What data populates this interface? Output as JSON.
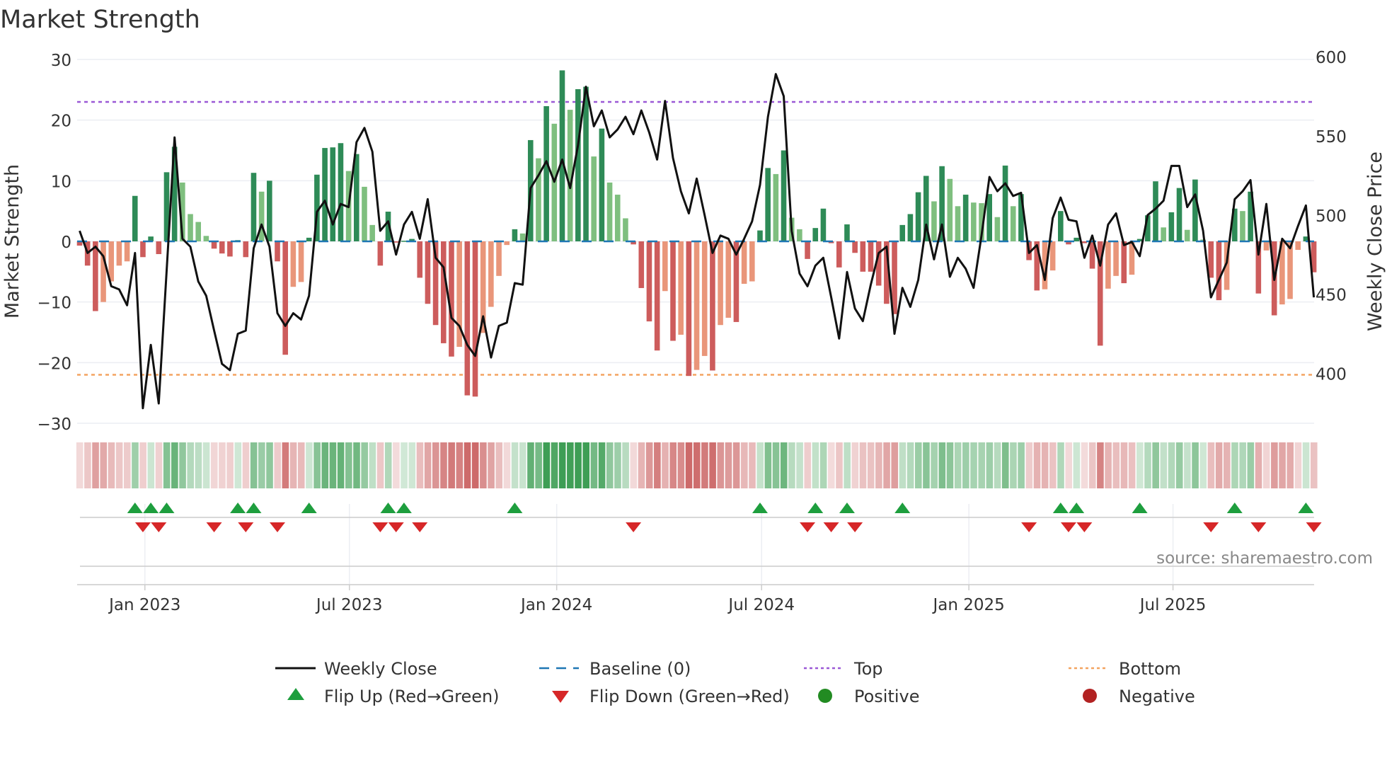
{
  "chart_data": {
    "type": "bar",
    "title": "Market Strength",
    "ylabel": "Market Strength",
    "y2label": "Weekly Close Price",
    "ylim": [
      -30,
      30
    ],
    "y2lim": [
      400,
      600
    ],
    "yticks": [
      "30",
      "20",
      "10",
      "0",
      "−10",
      "−20",
      "−30"
    ],
    "ytick_values": [
      30,
      20,
      10,
      0,
      -10,
      -20,
      -30
    ],
    "y2ticks": [
      "600",
      "550",
      "500",
      "450",
      "400"
    ],
    "y2tick_values": [
      600,
      550,
      500,
      450,
      400
    ],
    "frequency": "weekly",
    "xticks": [
      {
        "label": "Jan 2023",
        "week_index": 8.25
      },
      {
        "label": "Jul 2023",
        "week_index": 34.1
      },
      {
        "label": "Jan 2024",
        "week_index": 60.3
      },
      {
        "label": "Jul 2024",
        "week_index": 86.2
      },
      {
        "label": "Jan 2025",
        "week_index": 112.4
      },
      {
        "label": "Jul 2025",
        "week_index": 138.2
      }
    ],
    "top_level": 23,
    "bottom_level": -22,
    "baseline": 0,
    "strength": [
      -0.7,
      -4,
      -11.5,
      -10,
      -6.6,
      -4,
      -3.3,
      7.5,
      -2.6,
      0.8,
      -2.1,
      11.4,
      15.6,
      9.7,
      4.5,
      3.2,
      0.9,
      -1.2,
      -2,
      -2.5,
      0.2,
      -2.6,
      11.3,
      8.2,
      10,
      -3.3,
      -18.7,
      -7.5,
      -6.7,
      0.6,
      11,
      15.4,
      15.5,
      16.2,
      11.6,
      14.4,
      9,
      2.7,
      -4,
      4.9,
      -0.2,
      0.1,
      0.4,
      -6,
      -10.3,
      -13.8,
      -16.8,
      -19,
      -17.4,
      -25.4,
      -25.6,
      -15.1,
      -10.8,
      -5.7,
      -0.6,
      2,
      1.3,
      16.7,
      13.7,
      22.3,
      19.4,
      28.2,
      21.7,
      25.1,
      25.5,
      14,
      18.6,
      9.7,
      7.7,
      3.8,
      -0.5,
      -7.7,
      -13.2,
      -18,
      -8.2,
      -16.4,
      -15.4,
      -22.2,
      -21.2,
      -18.9,
      -21.3,
      -13.8,
      -12.6,
      -13.3,
      -7,
      -6.6,
      1.8,
      12.1,
      11.1,
      15,
      3.9,
      2,
      -2.9,
      2.2,
      5.4,
      -0.3,
      -4.3,
      2.8,
      -1.9,
      -5,
      -5,
      -7.3,
      -10.3,
      -12,
      2.7,
      4.5,
      8.1,
      10.8,
      6.6,
      12.4,
      10.3,
      5.8,
      7.7,
      6.4,
      6.3,
      7.8,
      4,
      12.5,
      5.8,
      7.8,
      -3.1,
      -8.1,
      -7.9,
      -4.8,
      5,
      -0.5,
      0.6,
      -0.3,
      -4.5,
      -17.2,
      -7.8,
      -5.7,
      -6.9,
      -5.5,
      0.4,
      4.3,
      9.9,
      2.3,
      4.8,
      8.8,
      1.9,
      10.2,
      0.3,
      -6,
      -9.7,
      -8,
      5.4,
      5,
      8.2,
      -8.6,
      -1.5,
      -12.2,
      -10.4,
      -9.5,
      -1.4,
      0.8,
      -5.1
    ],
    "weekly_close": [
      490,
      476,
      480,
      474,
      455,
      453,
      443,
      476,
      378,
      418,
      381,
      465,
      549,
      485,
      480,
      458,
      449,
      427,
      406,
      402,
      425,
      427,
      479,
      494,
      480,
      438,
      430,
      438,
      434,
      449,
      502,
      509,
      494,
      507,
      505,
      546,
      555,
      540,
      490,
      496,
      475,
      494,
      502,
      485,
      510,
      473,
      467,
      435,
      430,
      418,
      411,
      436,
      410,
      430,
      432,
      457,
      456,
      517,
      525,
      534,
      521,
      535,
      517,
      544,
      581,
      556,
      566,
      549,
      554,
      562,
      551,
      566,
      552,
      535,
      572,
      536,
      515,
      501,
      523,
      500,
      476,
      487,
      485,
      475,
      485,
      496,
      519,
      562,
      589,
      575,
      490,
      463,
      455,
      468,
      473,
      448,
      422,
      464,
      441,
      433,
      456,
      476,
      480,
      425,
      454,
      442,
      459,
      494,
      472,
      494,
      461,
      473,
      466,
      454,
      487,
      524,
      515,
      520,
      512,
      514,
      476,
      481,
      459,
      498,
      511,
      497,
      496,
      473,
      487,
      468,
      494,
      501,
      481,
      483,
      474,
      500,
      504,
      509,
      531,
      531,
      505,
      513,
      490,
      448,
      459,
      470,
      510,
      515,
      522,
      475,
      507,
      459,
      485,
      479,
      493,
      506,
      448
    ],
    "flip_up_weeks": [
      7,
      9,
      11,
      20,
      22,
      29,
      39,
      41,
      55,
      86,
      93,
      97,
      104,
      124,
      126,
      134,
      146,
      155
    ],
    "flip_down_weeks": [
      8,
      10,
      17,
      21,
      25,
      38,
      40,
      43,
      70,
      92,
      95,
      98,
      120,
      125,
      127,
      143,
      149,
      156
    ],
    "legend": {
      "placement": "bottom",
      "items": [
        {
          "label": "Weekly Close",
          "icon": "solid-line"
        },
        {
          "label": "Baseline (0)",
          "icon": "dashed-line"
        },
        {
          "label": "Top",
          "icon": "dotted-line"
        },
        {
          "label": "Bottom",
          "icon": "dotted-line"
        },
        {
          "label": "Flip Up (Red→Green)",
          "icon": "triangle-up"
        },
        {
          "label": "Flip Down (Green→Red)",
          "icon": "triangle-down"
        },
        {
          "label": "Positive",
          "icon": "circle"
        },
        {
          "label": "Negative",
          "icon": "circle"
        }
      ]
    },
    "colors": {
      "pos_strong": "#2e8b57",
      "pos_weak": "#7fbf7f",
      "neg_strong": "#cd5c5c",
      "neg_weak": "#e9967a",
      "close": "#111111",
      "baseline": "#1f77b4",
      "top": "#9b59d6",
      "bottom": "#f4a460",
      "flip_up": "#1e9e3e",
      "flip_down": "#d62728",
      "positive": "#228b22",
      "negative": "#b22222"
    }
  },
  "source": "source: sharemaestro.com"
}
